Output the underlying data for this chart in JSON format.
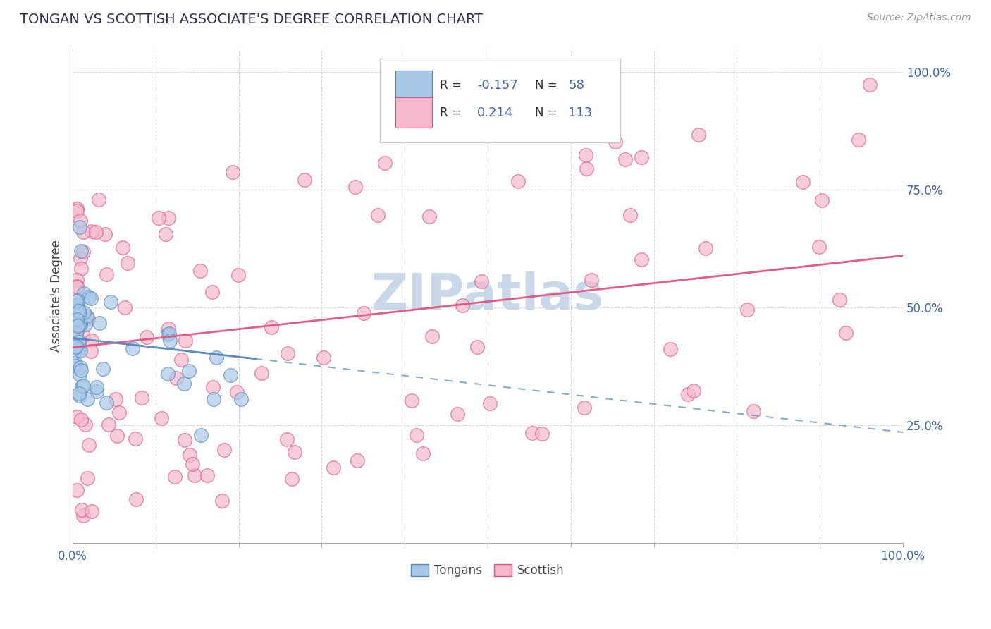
{
  "title": "TONGAN VS SCOTTISH ASSOCIATE'S DEGREE CORRELATION CHART",
  "source": "Source: ZipAtlas.com",
  "ylabel": "Associate's Degree",
  "y_tick_labels": [
    "",
    "25.0%",
    "50.0%",
    "75.0%",
    "100.0%"
  ],
  "tongan_color": "#a8c8e8",
  "scottish_color": "#f5b8cc",
  "tongan_line_color": "#5588bb",
  "scottish_line_color": "#e05580",
  "title_color": "#333355",
  "source_color": "#999999",
  "watermark_color": "#c8d8e8",
  "background_color": "#ffffff",
  "grid_color": "#cccccc",
  "axis_label_color": "#4466aa",
  "legend_r1_value": "-0.157",
  "legend_n1_value": "58",
  "legend_r2_value": "0.214",
  "legend_n2_value": "113"
}
